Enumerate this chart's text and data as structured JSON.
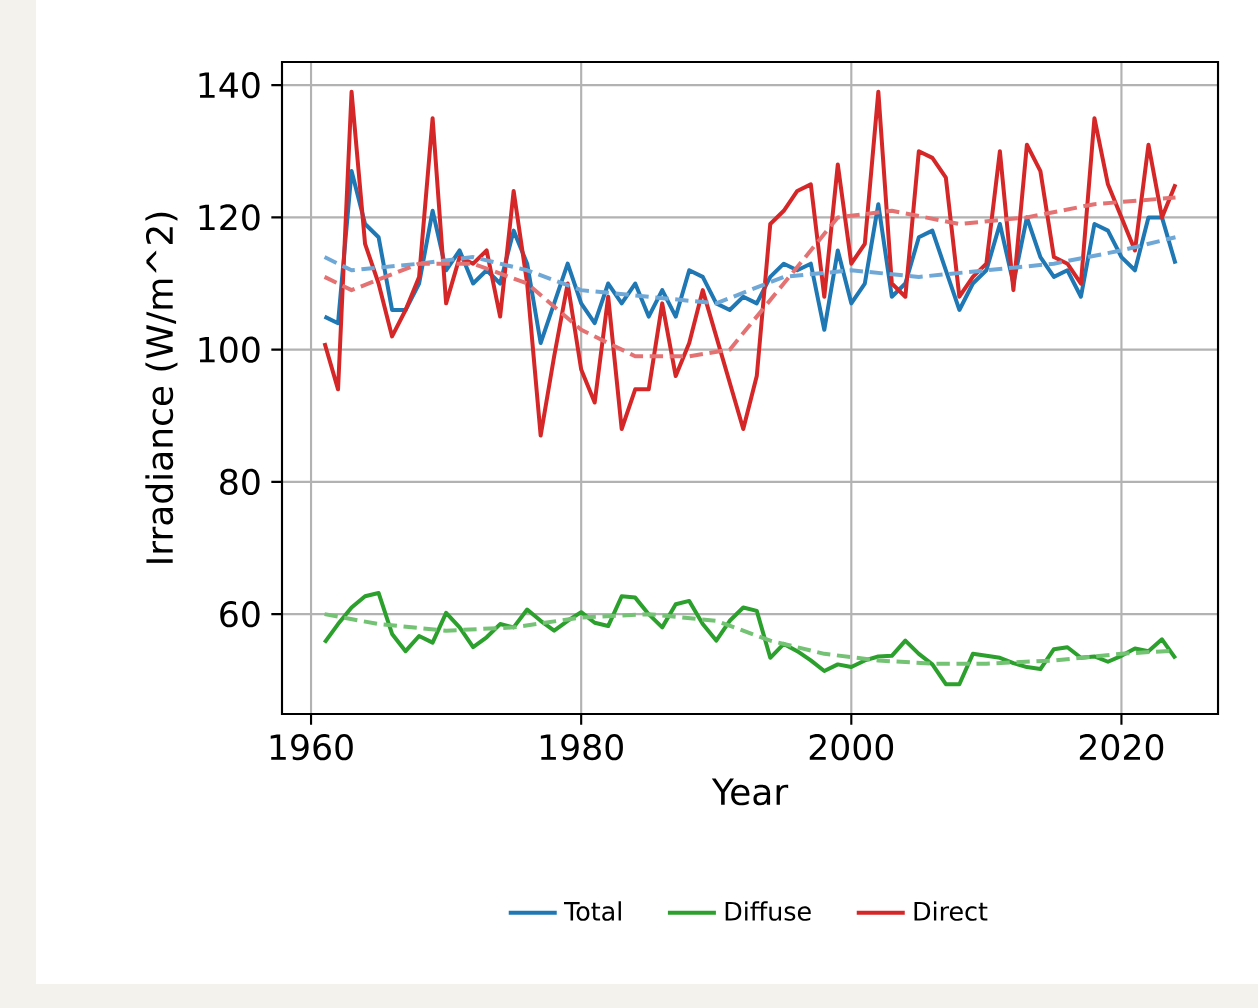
{
  "chart_data": {
    "type": "line",
    "xlabel": "Year",
    "ylabel": "Irradiance (W/m^2)",
    "x": [
      1961,
      1962,
      1963,
      1964,
      1965,
      1966,
      1967,
      1968,
      1969,
      1970,
      1971,
      1972,
      1973,
      1974,
      1975,
      1976,
      1977,
      1978,
      1979,
      1980,
      1981,
      1982,
      1983,
      1984,
      1985,
      1986,
      1987,
      1988,
      1989,
      1990,
      1991,
      1992,
      1993,
      1994,
      1995,
      1996,
      1997,
      1998,
      1999,
      2000,
      2001,
      2002,
      2003,
      2004,
      2005,
      2006,
      2007,
      2008,
      2009,
      2010,
      2011,
      2012,
      2013,
      2014,
      2015,
      2016,
      2017,
      2018,
      2019,
      2020,
      2021,
      2022,
      2023,
      2024
    ],
    "xlim": [
      1957.85,
      2027.15
    ],
    "xticks": [
      1960,
      1980,
      2000,
      2020
    ],
    "ylim": [
      44.9,
      143.5
    ],
    "yticks": [
      60,
      80,
      100,
      120,
      140
    ],
    "grid": true,
    "legend": "bottom",
    "series": [
      {
        "name": "Total",
        "color": "#1f77b4",
        "values": [
          105,
          104,
          127,
          119,
          117,
          106,
          106,
          110,
          121,
          112,
          115,
          110,
          112,
          110,
          118,
          113,
          101,
          107,
          113,
          107,
          104,
          110,
          107,
          110,
          105,
          109,
          105,
          112,
          111,
          107,
          106,
          108,
          107,
          111,
          113,
          112,
          113,
          103,
          115,
          107,
          110,
          122,
          108,
          110,
          117,
          118,
          112,
          106,
          110,
          112,
          119,
          110,
          120,
          114,
          111,
          112,
          108,
          119,
          118,
          114,
          112,
          120,
          120,
          113
        ]
      },
      {
        "name": "Diffuse",
        "color": "#2ca02c",
        "values": [
          55.7,
          58.5,
          61,
          62.7,
          63.2,
          57,
          54.4,
          56.7,
          55.7,
          60.2,
          58,
          55,
          56.5,
          58.5,
          58,
          60.7,
          59,
          57.5,
          59,
          60.3,
          58.7,
          58.2,
          62.7,
          62.5,
          60,
          58,
          61.5,
          62,
          58.5,
          56,
          59,
          61,
          60.5,
          53.4,
          55.5,
          54.4,
          53,
          51.4,
          52.4,
          52,
          53,
          53.6,
          53.7,
          56,
          54,
          52.4,
          49.4,
          49.4,
          54,
          53.7,
          53.4,
          52.6,
          52,
          51.7,
          54.7,
          55,
          53.4,
          53.6,
          52.8,
          53.7,
          54.8,
          54.4,
          56.2,
          53.3
        ]
      },
      {
        "name": "Direct",
        "color": "#d62728",
        "values": [
          101,
          94,
          139,
          116,
          110,
          102,
          106,
          111,
          135,
          107,
          114,
          113,
          115,
          105,
          124,
          110,
          87,
          99,
          110,
          97,
          92,
          108,
          88,
          94,
          94,
          107,
          96,
          101,
          109,
          102,
          95,
          88,
          96,
          119,
          121,
          124,
          125,
          108,
          128,
          113,
          116,
          139,
          110,
          108,
          130,
          129,
          126,
          108,
          111,
          113,
          130,
          109,
          131,
          127,
          114,
          113,
          110,
          135,
          125,
          120,
          115,
          131,
          120,
          125
        ]
      },
      {
        "type": "line",
        "line_style": "dashed",
        "color": "#6fa8d6",
        "x": [
          1961,
          1963,
          1968,
          1972,
          1976,
          1980,
          1985,
          1990,
          1995,
          2000,
          2005,
          2010,
          2015,
          2020,
          2024
        ],
        "values": [
          114,
          112,
          113,
          114,
          112,
          109,
          108,
          107,
          111,
          112,
          111,
          112,
          113,
          115,
          117
        ]
      },
      {
        "type": "line",
        "line_style": "dashed",
        "color": "#74c274",
        "x": [
          1961,
          1965,
          1970,
          1975,
          1980,
          1985,
          1990,
          1994,
          1998,
          2002,
          2006,
          2010,
          2015,
          2020,
          2024
        ],
        "values": [
          60,
          58.5,
          57.5,
          58,
          59.5,
          60,
          59,
          56,
          54,
          53,
          52.5,
          52.5,
          53,
          54,
          54.5
        ]
      },
      {
        "type": "line",
        "line_style": "dashed",
        "color": "#e47273",
        "x": [
          1961,
          1963,
          1968,
          1972,
          1976,
          1980,
          1984,
          1988,
          1991,
          1995,
          1999,
          2003,
          2008,
          2013,
          2018,
          2024
        ],
        "values": [
          111,
          109,
          113,
          113,
          110,
          103,
          99,
          99,
          100,
          110,
          120,
          121,
          119,
          120,
          122,
          123
        ]
      }
    ]
  }
}
